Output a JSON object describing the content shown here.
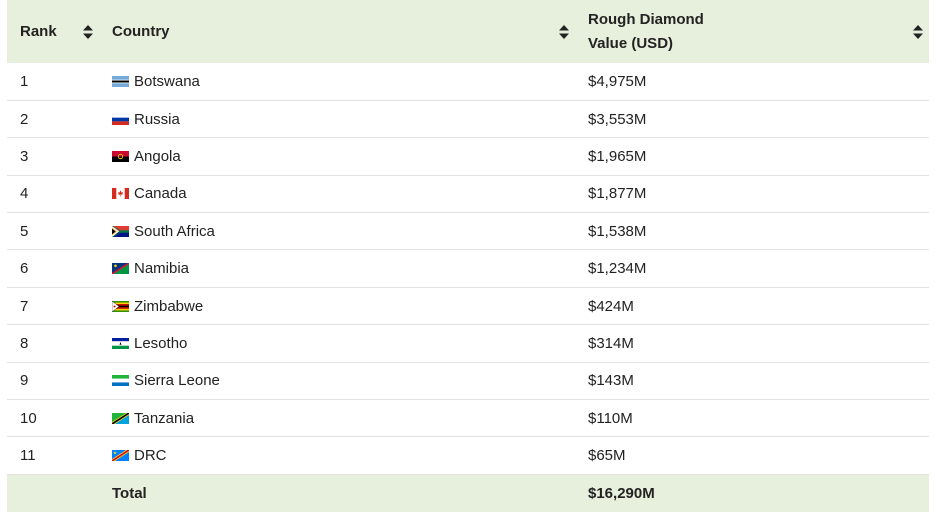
{
  "header": {
    "rank": "Rank",
    "country": "Country",
    "value_line1": "Rough Diamond",
    "value_line2": "Value (USD)"
  },
  "rows": [
    {
      "rank": "1",
      "country": "Botswana",
      "value": "$4,975M",
      "flag": "botswana-flag-icon"
    },
    {
      "rank": "2",
      "country": "Russia",
      "value": "$3,553M",
      "flag": "russia-flag-icon"
    },
    {
      "rank": "3",
      "country": "Angola",
      "value": "$1,965M",
      "flag": "angola-flag-icon"
    },
    {
      "rank": "4",
      "country": "Canada",
      "value": "$1,877M",
      "flag": "canada-flag-icon"
    },
    {
      "rank": "5",
      "country": "South Africa",
      "value": "$1,538M",
      "flag": "south-africa-flag-icon"
    },
    {
      "rank": "6",
      "country": "Namibia",
      "value": "$1,234M",
      "flag": "namibia-flag-icon"
    },
    {
      "rank": "7",
      "country": "Zimbabwe",
      "value": "$424M",
      "flag": "zimbabwe-flag-icon"
    },
    {
      "rank": "8",
      "country": "Lesotho",
      "value": "$314M",
      "flag": "lesotho-flag-icon"
    },
    {
      "rank": "9",
      "country": "Sierra Leone",
      "value": "$143M",
      "flag": "sierra-leone-flag-icon"
    },
    {
      "rank": "10",
      "country": "Tanzania",
      "value": "$110M",
      "flag": "tanzania-flag-icon"
    },
    {
      "rank": "11",
      "country": "DRC",
      "value": "$65M",
      "flag": "drc-flag-icon"
    }
  ],
  "footer": {
    "rank": "",
    "label": "Total",
    "value": "$16,290M"
  },
  "colors": {
    "header_bg": "#e7f0dc",
    "row_border": "#e3e3e3"
  }
}
